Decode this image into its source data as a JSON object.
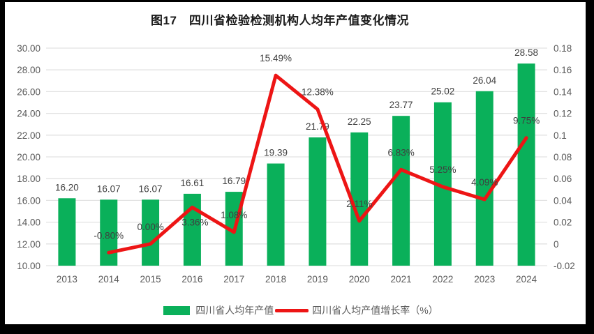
{
  "chart_data": {
    "type": "bar",
    "combo": "bar+line",
    "title": "图17　四川省检验检测机构人均年产值变化情况",
    "categories": [
      "2013",
      "2014",
      "2015",
      "2016",
      "2017",
      "2018",
      "2019",
      "2020",
      "2021",
      "2022",
      "2023",
      "2024"
    ],
    "series": [
      {
        "name": "四川省人均年产值",
        "type": "bar",
        "axis": "left",
        "color": "#0AB05A",
        "values": [
          16.2,
          16.07,
          16.07,
          16.61,
          16.79,
          19.39,
          21.79,
          22.25,
          23.77,
          25.02,
          26.04,
          28.58
        ],
        "labels": [
          "16.20",
          "16.07",
          "16.07",
          "16.61",
          "16.79",
          "19.39",
          "21.79",
          "22.25",
          "23.77",
          "25.02",
          "26.04",
          "28.58"
        ]
      },
      {
        "name": "四川省人均产值增长率（%）",
        "type": "line",
        "axis": "right",
        "color": "#ED1515",
        "values": [
          null,
          -0.008,
          0.0,
          0.0336,
          0.0108,
          0.1549,
          0.1238,
          0.0211,
          0.0683,
          0.0525,
          0.0409,
          0.0975
        ],
        "labels": [
          "",
          "-0.80%",
          "0.00%",
          "3.36%",
          "1.08%",
          "15.49%",
          "12.38%",
          "2.11%",
          "6.83%",
          "5.25%",
          "4.09%",
          "9.75%"
        ]
      }
    ],
    "left_axis": {
      "min": 10,
      "max": 30,
      "step": 2,
      "ticks": [
        "30.00",
        "28.00",
        "26.00",
        "24.00",
        "22.00",
        "20.00",
        "18.00",
        "16.00",
        "14.00",
        "12.00",
        "10.00"
      ]
    },
    "right_axis": {
      "min": -0.02,
      "max": 0.18,
      "step": 0.02,
      "ticks": [
        "0.18",
        "0.16",
        "0.14",
        "0.12",
        "0.1",
        "0.08",
        "0.06",
        "0.04",
        "0.02",
        "0",
        "-0.02"
      ]
    },
    "xlabel": "",
    "ylabel": "",
    "grid": true,
    "legend_position": "bottom",
    "colors": {
      "grid": "#E2E2E2",
      "axis_text": "#595959",
      "data_label": "#3F3F3F",
      "title_text": "#1A1A1A",
      "background": "#FFFFFF",
      "frame": "#000000"
    }
  }
}
